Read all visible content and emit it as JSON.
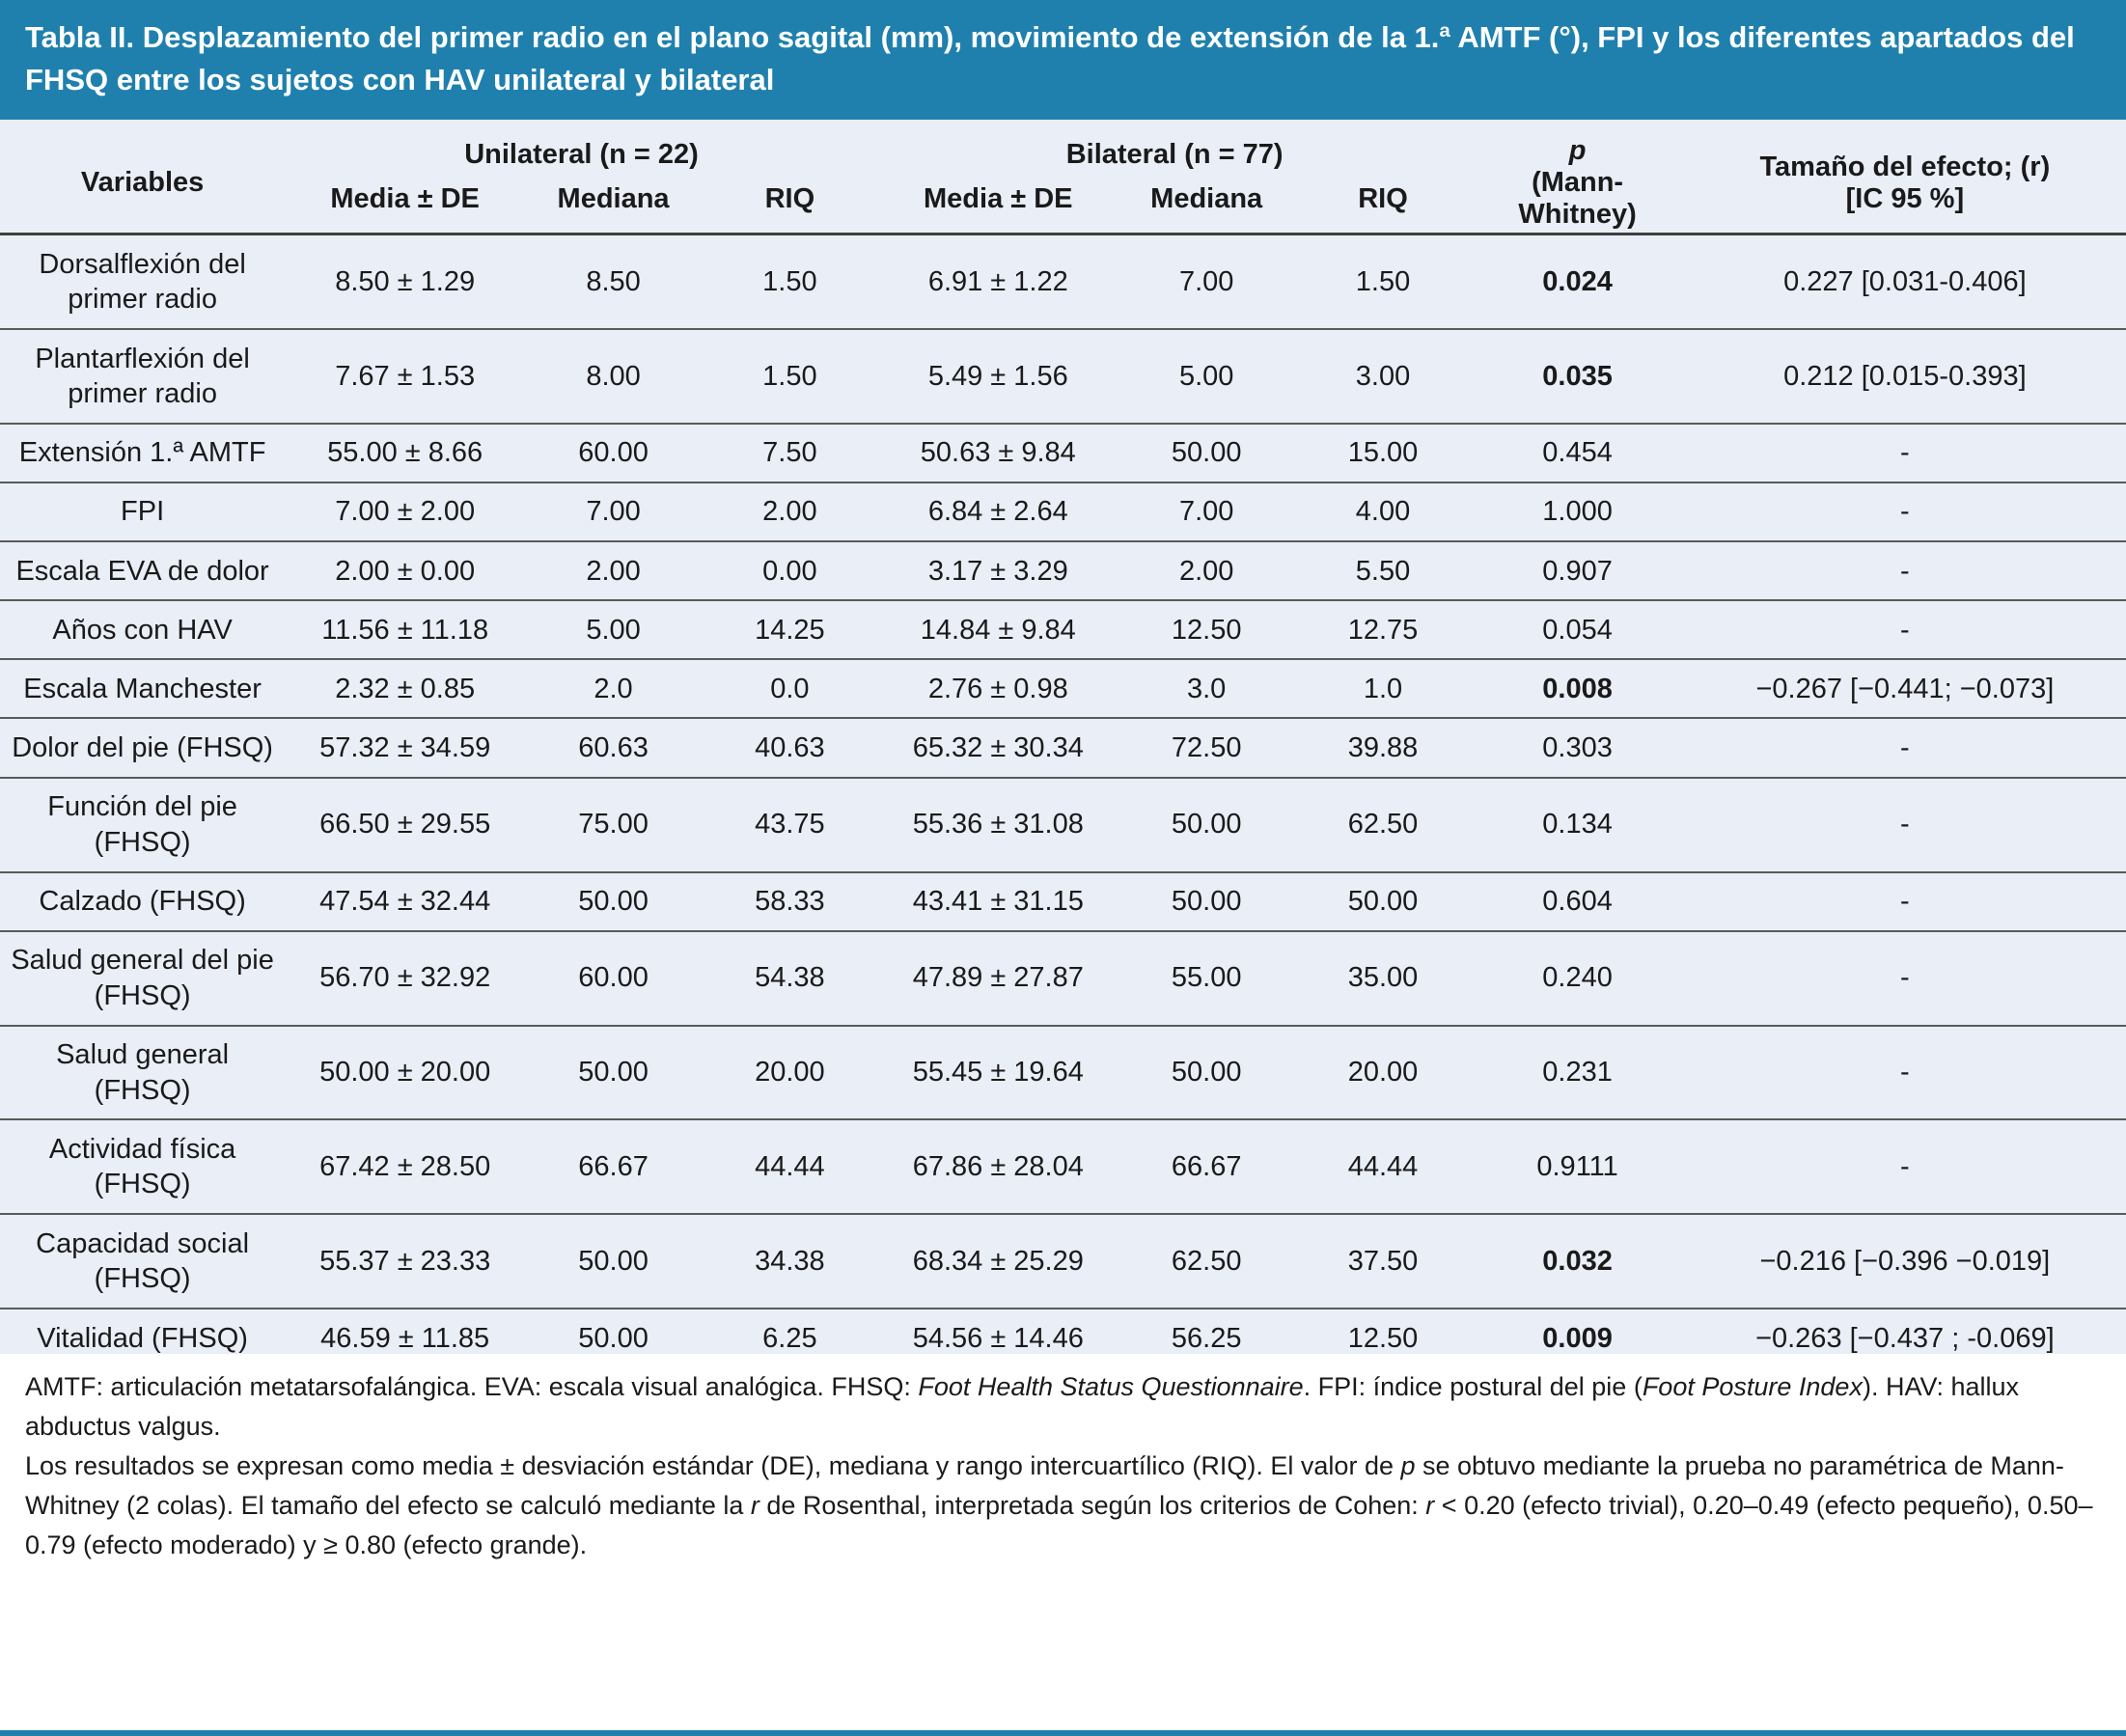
{
  "colors": {
    "banner_background": "#1f80ad",
    "banner_text": "#ffffff",
    "table_background": "#e9eef7",
    "row_border": "#5a5a5a",
    "header_border": "#3f3f3f",
    "body_text": "#1a1a1a"
  },
  "chart_data": {
    "type": "table",
    "title": "Tabla II. Desplazamiento del primer radio en el plano sagital (mm), movimiento de extensión de la 1.ª AMTF (°), FPI y los diferentes apartados del FHSQ entre los sujetos con HAV unilateral y bilateral",
    "header": {
      "variables": "Variables",
      "unilateral": "Unilateral (n = 22)",
      "bilateral": "Bilateral (n = 77)",
      "sub_media": "Media ± DE",
      "sub_mediana": "Mediana",
      "sub_riq": "RIQ",
      "p_label": "p",
      "p_sub": "(Mann-Whitney)",
      "effect_label": "Tamaño del efecto; (r)",
      "effect_sub": "[IC 95 %]"
    },
    "rows": [
      {
        "variable": "Dorsalflexión del primer radio",
        "uni_media": "8.50 ± 1.29",
        "uni_mediana": "8.50",
        "uni_riq": "1.50",
        "bi_media": "6.91 ± 1.22",
        "bi_mediana": "7.00",
        "bi_riq": "1.50",
        "p": "0.024",
        "p_bold": true,
        "effect": "0.227 [0.031-0.406]"
      },
      {
        "variable": "Plantarflexión del primer radio",
        "uni_media": "7.67 ± 1.53",
        "uni_mediana": "8.00",
        "uni_riq": "1.50",
        "bi_media": "5.49 ± 1.56",
        "bi_mediana": "5.00",
        "bi_riq": "3.00",
        "p": "0.035",
        "p_bold": true,
        "effect": "0.212 [0.015-0.393]"
      },
      {
        "variable": "Extensión 1.ª AMTF",
        "uni_media": "55.00 ± 8.66",
        "uni_mediana": "60.00",
        "uni_riq": "7.50",
        "bi_media": "50.63 ± 9.84",
        "bi_mediana": "50.00",
        "bi_riq": "15.00",
        "p": "0.454",
        "p_bold": false,
        "effect": "-"
      },
      {
        "variable": "FPI",
        "uni_media": "7.00 ± 2.00",
        "uni_mediana": "7.00",
        "uni_riq": "2.00",
        "bi_media": "6.84 ± 2.64",
        "bi_mediana": "7.00",
        "bi_riq": "4.00",
        "p": "1.000",
        "p_bold": false,
        "effect": "-"
      },
      {
        "variable": "Escala EVA de dolor",
        "uni_media": "2.00 ± 0.00",
        "uni_mediana": "2.00",
        "uni_riq": "0.00",
        "bi_media": "3.17 ± 3.29",
        "bi_mediana": "2.00",
        "bi_riq": "5.50",
        "p": "0.907",
        "p_bold": false,
        "effect": "-"
      },
      {
        "variable": "Años con HAV",
        "uni_media": "11.56 ± 11.18",
        "uni_mediana": "5.00",
        "uni_riq": "14.25",
        "bi_media": "14.84 ± 9.84",
        "bi_mediana": "12.50",
        "bi_riq": "12.75",
        "p": "0.054",
        "p_bold": false,
        "effect": "-"
      },
      {
        "variable": "Escala Manchester",
        "uni_media": "2.32 ± 0.85",
        "uni_mediana": "2.0",
        "uni_riq": "0.0",
        "bi_media": "2.76 ± 0.98",
        "bi_mediana": "3.0",
        "bi_riq": "1.0",
        "p": "0.008",
        "p_bold": true,
        "effect": "−0.267 [−0.441; −0.073]"
      },
      {
        "variable": "Dolor del pie (FHSQ)",
        "uni_media": "57.32 ± 34.59",
        "uni_mediana": "60.63",
        "uni_riq": "40.63",
        "bi_media": "65.32 ± 30.34",
        "bi_mediana": "72.50",
        "bi_riq": "39.88",
        "p": "0.303",
        "p_bold": false,
        "effect": "-"
      },
      {
        "variable": "Función del pie (FHSQ)",
        "uni_media": "66.50 ± 29.55",
        "uni_mediana": "75.00",
        "uni_riq": "43.75",
        "bi_media": "55.36 ± 31.08",
        "bi_mediana": "50.00",
        "bi_riq": "62.50",
        "p": "0.134",
        "p_bold": false,
        "effect": "-"
      },
      {
        "variable": "Calzado (FHSQ)",
        "uni_media": "47.54 ± 32.44",
        "uni_mediana": "50.00",
        "uni_riq": "58.33",
        "bi_media": "43.41 ± 31.15",
        "bi_mediana": "50.00",
        "bi_riq": "50.00",
        "p": "0.604",
        "p_bold": false,
        "effect": "-"
      },
      {
        "variable": "Salud general del pie (FHSQ)",
        "uni_media": "56.70 ± 32.92",
        "uni_mediana": "60.00",
        "uni_riq": "54.38",
        "bi_media": "47.89 ± 27.87",
        "bi_mediana": "55.00",
        "bi_riq": "35.00",
        "p": "0.240",
        "p_bold": false,
        "effect": "-"
      },
      {
        "variable": "Salud general (FHSQ)",
        "uni_media": "50.00 ± 20.00",
        "uni_mediana": "50.00",
        "uni_riq": "20.00",
        "bi_media": "55.45 ± 19.64",
        "bi_mediana": "50.00",
        "bi_riq": "20.00",
        "p": "0.231",
        "p_bold": false,
        "effect": "-"
      },
      {
        "variable": "Actividad física (FHSQ)",
        "uni_media": "67.42 ± 28.50",
        "uni_mediana": "66.67",
        "uni_riq": "44.44",
        "bi_media": "67.86 ± 28.04",
        "bi_mediana": "66.67",
        "bi_riq": "44.44",
        "p": "0.9111",
        "p_bold": false,
        "effect": "-"
      },
      {
        "variable": "Capacidad social (FHSQ)",
        "uni_media": "55.37 ± 23.33",
        "uni_mediana": "50.00",
        "uni_riq": "34.38",
        "bi_media": "68.34 ± 25.29",
        "bi_mediana": "62.50",
        "bi_riq": "37.50",
        "p": "0.032",
        "p_bold": true,
        "effect": "−0.216 [−0.396 −0.019]"
      },
      {
        "variable": "Vitalidad (FHSQ)",
        "uni_media": "46.59 ± 11.85",
        "uni_mediana": "50.00",
        "uni_riq": "6.25",
        "bi_media": "54.56 ± 14.46",
        "bi_mediana": "56.25",
        "bi_riq": "12.50",
        "p": "0.009",
        "p_bold": true,
        "effect": "−0.263 [−0.437 ; -0.069]"
      }
    ]
  },
  "footnotes": [
    {
      "segments": [
        {
          "text": "AMTF: articulación metatarsofalángica. EVA: escala visual analógica. FHSQ: ",
          "italic": false
        },
        {
          "text": "Foot Health Status Questionnaire",
          "italic": true
        },
        {
          "text": ". FPI: índice postural del pie (",
          "italic": false
        },
        {
          "text": "Foot Posture Index",
          "italic": true
        },
        {
          "text": "). HAV: hallux abductus valgus.",
          "italic": false
        }
      ]
    },
    {
      "segments": [
        {
          "text": "Los resultados se expresan como media ± desviación estándar (DE), mediana y rango intercuartílico (RIQ). El valor de ",
          "italic": false
        },
        {
          "text": "p",
          "italic": true
        },
        {
          "text": " se obtuvo mediante la prueba no paramétrica de Mann-Whitney (2 colas). El tamaño del efecto se calculó mediante la ",
          "italic": false
        },
        {
          "text": "r",
          "italic": true
        },
        {
          "text": " de Rosenthal, interpretada según los criterios de Cohen: ",
          "italic": false
        },
        {
          "text": "r",
          "italic": true
        },
        {
          "text": " < 0.20 (efecto trivial), 0.20–0.49 (efecto pequeño), 0.50–0.79 (efecto moderado) y ≥ 0.80 (efecto grande).",
          "italic": false
        }
      ]
    }
  ]
}
